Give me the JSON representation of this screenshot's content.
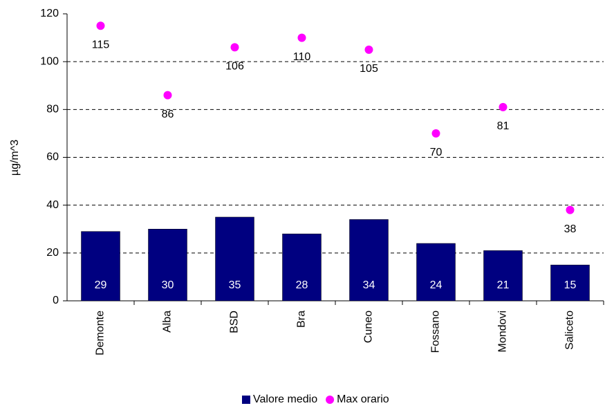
{
  "chart_data": {
    "type": "bar",
    "y_label": "µg/m^3",
    "categories": [
      "Demonte",
      "Alba",
      "BSD",
      "Bra",
      "Cuneo",
      "Fossano",
      "Mondovi",
      "Saliceto"
    ],
    "series": [
      {
        "name": "Valore medio",
        "type": "bar",
        "color": "#000080",
        "values": [
          29,
          30,
          35,
          28,
          34,
          24,
          21,
          15
        ]
      },
      {
        "name": "Max orario",
        "type": "scatter",
        "color": "#ff00ff",
        "values": [
          115,
          86,
          106,
          110,
          105,
          70,
          81,
          38
        ]
      }
    ],
    "ylim": [
      0,
      120
    ],
    "yticks": [
      0,
      20,
      40,
      60,
      80,
      100,
      120
    ],
    "grid": true,
    "legend": "bottom"
  }
}
